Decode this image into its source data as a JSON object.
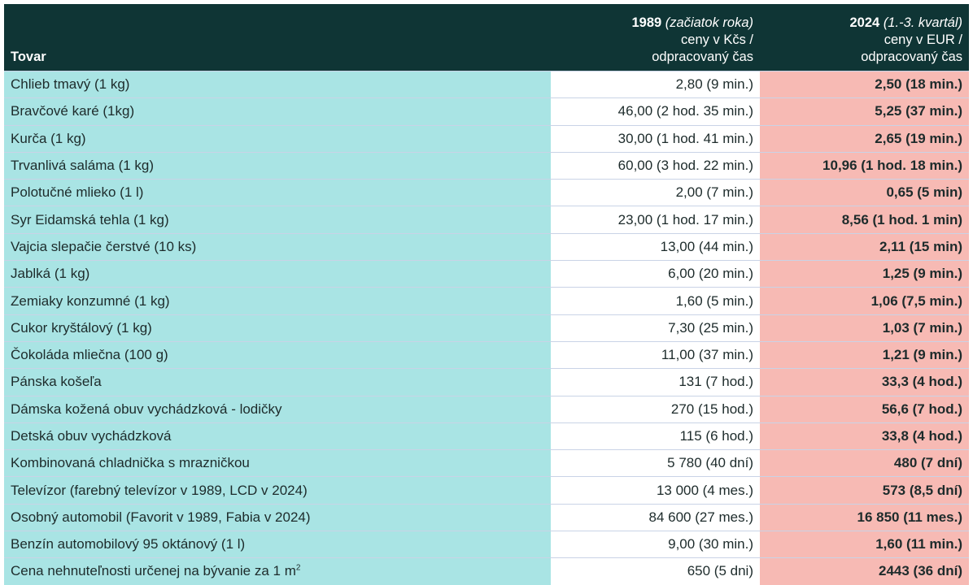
{
  "table": {
    "header": {
      "item": "Tovar",
      "col1": {
        "year": "1989",
        "period": "(začiatok roka)",
        "line2": "ceny v Kčs /",
        "line3": "odpracovaný čas"
      },
      "col2": {
        "year": "2024",
        "period": "(1.-3. kvartál)",
        "line2": "ceny v EUR /",
        "line3": "odpracovaný čas"
      }
    },
    "rows": [
      {
        "item": "Chlieb tmavý (1 kg)",
        "v1989": "2,80 (9 min.)",
        "v2024": "2,50 (18 min.)"
      },
      {
        "item": "Bravčové karé (1kg)",
        "v1989": "46,00 (2 hod. 35 min.)",
        "v2024": "5,25 (37 min.)"
      },
      {
        "item": "Kurča (1 kg)",
        "v1989": "30,00 (1 hod. 41 min.)",
        "v2024": "2,65 (19 min.)"
      },
      {
        "item": "Trvanlivá saláma (1 kg)",
        "v1989": "60,00 (3 hod. 22 min.)",
        "v2024": "10,96 (1 hod. 18 min.)"
      },
      {
        "item": "Polotučné mlieko (1 l)",
        "v1989": "2,00 (7 min.)",
        "v2024": "0,65 (5 min)"
      },
      {
        "item": "Syr Eidamská tehla (1 kg)",
        "v1989": "23,00 (1 hod. 17 min.)",
        "v2024": "8,56 (1 hod. 1 min)"
      },
      {
        "item": "Vajcia slepačie čerstvé (10 ks)",
        "v1989": "13,00 (44 min.)",
        "v2024": "2,11 (15 min)"
      },
      {
        "item": "Jablká (1 kg)",
        "v1989": "6,00 (20 min.)",
        "v2024": "1,25 (9 min.)"
      },
      {
        "item": "Zemiaky konzumné (1 kg)",
        "v1989": "1,60 (5 min.)",
        "v2024": "1,06 (7,5 min.)"
      },
      {
        "item": "Cukor kryštálový (1 kg)",
        "v1989": "7,30 (25 min.)",
        "v2024": "1,03 (7 min.)"
      },
      {
        "item": "Čokoláda mliečna (100 g)",
        "v1989": "11,00 (37 min.)",
        "v2024": "1,21 (9 min.)"
      },
      {
        "item": "Pánska košeľa",
        "v1989": "131 (7 hod.)",
        "v2024": "33,3 (4 hod.)"
      },
      {
        "item": "Dámska kožená obuv vychádzková - lodičky",
        "v1989": "270 (15 hod.)",
        "v2024": "56,6 (7 hod.)"
      },
      {
        "item": "Detská obuv vychádzková",
        "v1989": "115 (6 hod.)",
        "v2024": "33,8 (4 hod.)"
      },
      {
        "item": "Kombinovaná chladnička s mrazničkou",
        "v1989": "5 780 (40 dní)",
        "v2024": "480 (7 dní)"
      },
      {
        "item": "Televízor (farebný televízor v 1989, LCD v 2024)",
        "v1989": "13 000 (4 mes.)",
        "v2024": "573 (8,5 dní)"
      },
      {
        "item": "Osobný automobil (Favorit v 1989, Fabia v 2024)",
        "v1989": "84 600 (27 mes.)",
        "v2024": "16 850 (11 mes.)"
      },
      {
        "item": "Benzín automobilový 95 oktánový (1 l)",
        "v1989": "9,00 (30 min.)",
        "v2024": "1,60 (11 min.)"
      },
      {
        "item": "Cena nehnuteľnosti určenej na bývanie za 1 m",
        "sup": "2",
        "v1989": "650 (5 dni)",
        "v2024": "2443 (36 dní)"
      }
    ]
  }
}
